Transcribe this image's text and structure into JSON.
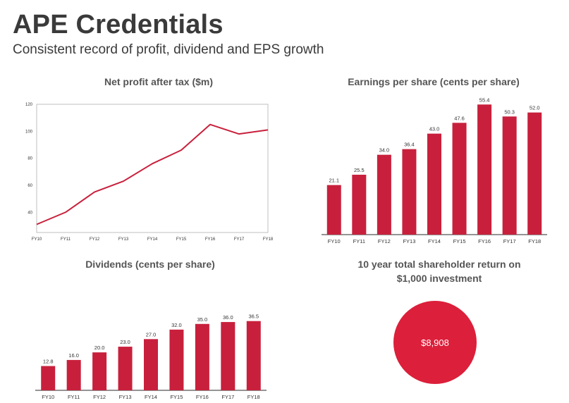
{
  "slide": {
    "title": "APE Credentials",
    "subtitle": "Consistent record of profit, dividend and EPS growth"
  },
  "colors": {
    "bar": "#c8203c",
    "line": "#c8203c",
    "bubble": "#dc1f3a",
    "axis": "#555555",
    "text": "#3a3a3a"
  },
  "chart_data": [
    {
      "id": "npat",
      "type": "line",
      "title": "Net profit after tax ($m)",
      "x": [
        "FY10",
        "FY11",
        "FY12",
        "FY13",
        "FY14",
        "FY15",
        "FY16",
        "FY17",
        "FY18"
      ],
      "series": [
        {
          "values": [
            31,
            40,
            55,
            63,
            76,
            86,
            105,
            98,
            101
          ]
        }
      ],
      "yticks": [
        40,
        60,
        80,
        100,
        120
      ],
      "ylim": [
        25,
        120
      ],
      "grid": false
    },
    {
      "id": "eps",
      "type": "bar",
      "title": "Earnings per share (cents per share)",
      "categories": [
        "FY10",
        "FY11",
        "FY12",
        "FY13",
        "FY14",
        "FY15",
        "FY16",
        "FY17",
        "FY18"
      ],
      "values": [
        21.1,
        25.5,
        34.0,
        36.4,
        43.0,
        47.6,
        55.4,
        50.3,
        52.0
      ],
      "labels": [
        "21.1",
        "25.5",
        "34.0",
        "36.4",
        "43.0",
        "47.6",
        "55.4",
        "50.3",
        "52.0"
      ],
      "ylim": [
        0,
        57
      ]
    },
    {
      "id": "dps",
      "type": "bar",
      "title": "Dividends (cents per share)",
      "categories": [
        "FY10",
        "FY11",
        "FY12",
        "FY13",
        "FY14",
        "FY15",
        "FY16",
        "FY17",
        "FY18"
      ],
      "values": [
        12.8,
        16.0,
        20.0,
        23.0,
        27.0,
        32.0,
        35.0,
        36.0,
        36.5
      ],
      "labels": [
        "12.8",
        "16.0",
        "20.0",
        "23.0",
        "27.0",
        "32.0",
        "35.0",
        "36.0",
        "36.5"
      ],
      "ylim": [
        0,
        39
      ]
    },
    {
      "id": "tsr",
      "type": "bubble",
      "title": "10 year total shareholder return on $1,000 investment",
      "value": 8908,
      "label": "$8,908"
    }
  ]
}
